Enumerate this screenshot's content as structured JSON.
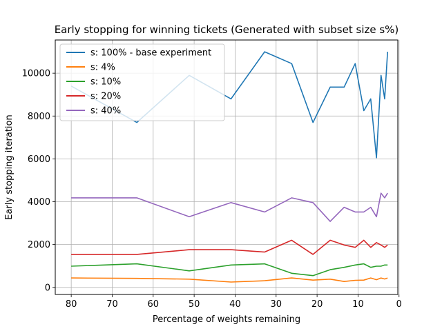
{
  "chart_data": {
    "type": "line",
    "title": "Early stopping for winning tickets (Generated with subset size s%)",
    "xlabel": "Percentage of weights remaining",
    "ylabel": "Early stopping iteration",
    "xlim": [
      83.9,
      0.3
    ],
    "ylim": [
      -330,
      11550
    ],
    "x_axis_inverted": true,
    "xticks": [
      80,
      70,
      60,
      50,
      40,
      30,
      20,
      10,
      0
    ],
    "xtick_labels": [
      "80",
      "70",
      "60",
      "50",
      "40",
      "30",
      "20",
      "10",
      "0"
    ],
    "yticks": [
      0,
      2000,
      4000,
      6000,
      8000,
      10000
    ],
    "ytick_labels": [
      "0",
      "2000",
      "4000",
      "6000",
      "8000",
      "10000"
    ],
    "grid": true,
    "legend_position": "top-left",
    "x": [
      80,
      64,
      51.2,
      41,
      32.8,
      26.2,
      21,
      16.8,
      13.4,
      10.7,
      8.6,
      6.9,
      5.5,
      4.4,
      3.5,
      2.8
    ],
    "series": [
      {
        "name": "s: 100% - base experiment",
        "color": "#1f77b4",
        "values": [
          9400,
          7700,
          9900,
          8800,
          11000,
          10450,
          7700,
          9350,
          9350,
          10450,
          8250,
          8800,
          6050,
          9900,
          8800,
          11000
        ]
      },
      {
        "name": "s: 4%",
        "color": "#ff7f0e",
        "values": [
          440,
          420,
          385,
          250,
          310,
          440,
          340,
          385,
          275,
          330,
          340,
          440,
          360,
          440,
          390,
          440
        ]
      },
      {
        "name": "s: 10%",
        "color": "#2ca02c",
        "values": [
          990,
          1100,
          770,
          1045,
          1100,
          660,
          550,
          825,
          935,
          1045,
          1100,
          935,
          990,
          990,
          1045,
          1045
        ]
      },
      {
        "name": "s: 20%",
        "color": "#d62728",
        "values": [
          1540,
          1540,
          1760,
          1760,
          1650,
          2200,
          1540,
          2200,
          1980,
          1870,
          2200,
          1870,
          2090,
          1980,
          1870,
          1980
        ]
      },
      {
        "name": "s: 40%",
        "color": "#9467bd",
        "values": [
          4180,
          4180,
          3300,
          3960,
          3520,
          4180,
          3960,
          3080,
          3740,
          3520,
          3520,
          3740,
          3300,
          4400,
          4180,
          4400
        ]
      }
    ]
  }
}
